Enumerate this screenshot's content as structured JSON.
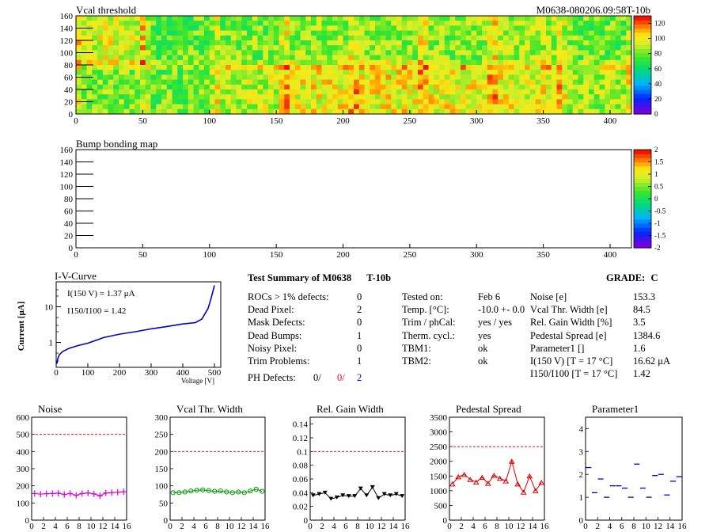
{
  "header": {
    "map1_title": "Vcal threshold",
    "module_id": "M0638-080206.09:58T-10b",
    "map2_title": "Bump bonding map"
  },
  "maps": {
    "x_ticks": [
      "0",
      "50",
      "100",
      "150",
      "200",
      "250",
      "300",
      "350",
      "400"
    ],
    "y_ticks": [
      "0",
      "20",
      "40",
      "60",
      "80",
      "100",
      "120",
      "140",
      "160"
    ],
    "palette1_ticks": [
      "0",
      "20",
      "40",
      "60",
      "80",
      "100",
      "120"
    ],
    "palette2_ticks": [
      "-2",
      "-1.5",
      "-1",
      "-0.5",
      "0",
      "0.5",
      "1",
      "1.5",
      "2"
    ]
  },
  "summary": {
    "title": "Test Summary of M0638",
    "variant": "T-10b",
    "grade_label": "GRADE:",
    "grade": "C",
    "left_rows": [
      {
        "label": "ROCs > 1% defects:",
        "value": "0"
      },
      {
        "label": "Dead Pixel:",
        "value": "2"
      },
      {
        "label": "Mask Defects:",
        "value": "0"
      },
      {
        "label": "Dead Bumps:",
        "value": "1"
      },
      {
        "label": "Noisy Pixel:",
        "value": "0"
      },
      {
        "label": "Trim Problems:",
        "value": "1"
      }
    ],
    "ph_label": "PH Defects:",
    "ph_values": [
      "0/",
      "0/",
      "2"
    ],
    "ph_colors": [
      "#000000",
      "#ff0000",
      "#0000ff"
    ],
    "mid_rows": [
      {
        "label": "Tested on:",
        "value": "Feb 6"
      },
      {
        "label": "Temp. [°C]:",
        "value": "-10.0 +- 0.0"
      },
      {
        "label": "Trim / phCal:",
        "value": "yes / yes"
      },
      {
        "label": "Therm. cycl.:",
        "value": "yes"
      },
      {
        "label": "TBM1:",
        "value": "ok"
      },
      {
        "label": "TBM2:",
        "value": "ok"
      }
    ],
    "right_rows": [
      {
        "label": "Noise [e]",
        "value": "153.3"
      },
      {
        "label": "Vcal Thr. Width [e]",
        "value": "84.5"
      },
      {
        "label": "Rel. Gain Width [%]",
        "value": "3.5"
      },
      {
        "label": "Pedestal Spread [e]",
        "value": "1384.6"
      },
      {
        "label": "Parameter1 []",
        "value": "1.6"
      },
      {
        "label": "I(150 V) [T = 17 °C]",
        "value": "16.62 μA"
      },
      {
        "label": "I150/I100 [T = 17 °C]",
        "value": "1.42"
      }
    ]
  },
  "chart_data": [
    {
      "type": "heatmap",
      "title": "Vcal threshold",
      "x_range": [
        0,
        416
      ],
      "y_range": [
        0,
        160
      ],
      "z_range": [
        0,
        130
      ],
      "colorbar_ticks": [
        0,
        20,
        40,
        60,
        80,
        100,
        120
      ],
      "layout": "2 rows x 8 ROCs",
      "roc_mean_top": [
        96,
        78,
        82,
        86,
        86,
        84,
        90,
        80
      ],
      "roc_mean_bottom": [
        84,
        80,
        92,
        100,
        101,
        100,
        99,
        88
      ]
    },
    {
      "type": "heatmap",
      "title": "Bump bonding map",
      "x_range": [
        0,
        416
      ],
      "y_range": [
        0,
        160
      ],
      "z_range": [
        -2,
        2
      ],
      "colorbar_ticks": [
        -2,
        -1.5,
        -1,
        -0.5,
        0,
        0.5,
        1,
        1.5,
        2
      ],
      "values": []
    },
    {
      "type": "line",
      "title": "I-V-Curve",
      "xlabel": "Voltage [V]",
      "ylabel": "Current [μA]",
      "x_ticks": [
        0,
        100,
        200,
        300,
        400,
        500
      ],
      "y_scale": "log",
      "y_ticks": [
        1,
        10
      ],
      "annotations": [
        "I(150 V) = 1.37 μA",
        "I150/I100 = 1.42"
      ],
      "x": [
        2,
        5,
        10,
        20,
        40,
        70,
        100,
        150,
        200,
        250,
        300,
        350,
        400,
        440,
        460,
        480,
        490,
        500
      ],
      "y": [
        0.25,
        0.35,
        0.45,
        0.55,
        0.68,
        0.82,
        0.95,
        1.37,
        1.7,
        2.0,
        2.4,
        2.8,
        3.3,
        3.6,
        4.5,
        9.0,
        18,
        40
      ]
    },
    {
      "type": "scatter",
      "title": "Noise",
      "x_ticks": [
        0,
        2,
        4,
        6,
        8,
        10,
        12,
        14,
        16
      ],
      "y_ticks": [
        0,
        100,
        200,
        300,
        400,
        500,
        600
      ],
      "ylim": [
        0,
        600
      ],
      "threshold": 500,
      "color": "#dd00dd",
      "marker": "plus",
      "connected": true,
      "x": [
        0,
        1,
        2,
        3,
        4,
        5,
        6,
        7,
        8,
        9,
        10,
        11,
        12,
        13,
        14,
        15
      ],
      "values": [
        155,
        152,
        154,
        155,
        157,
        150,
        155,
        145,
        155,
        158,
        153,
        142,
        158,
        160,
        162,
        165
      ]
    },
    {
      "type": "scatter",
      "title": "Vcal Thr. Width",
      "x_ticks": [
        0,
        2,
        4,
        6,
        8,
        10,
        12,
        14,
        16
      ],
      "y_ticks": [
        0,
        50,
        100,
        150,
        200,
        250,
        300
      ],
      "ylim": [
        0,
        300
      ],
      "threshold": 200,
      "color": "#009900",
      "marker": "circle",
      "connected": true,
      "x": [
        0,
        1,
        2,
        3,
        4,
        5,
        6,
        7,
        8,
        9,
        10,
        11,
        12,
        13,
        14,
        15
      ],
      "values": [
        80,
        80,
        82,
        85,
        87,
        88,
        86,
        84,
        85,
        82,
        80,
        82,
        80,
        85,
        90,
        84
      ]
    },
    {
      "type": "scatter",
      "title": "Rel. Gain Width",
      "x_ticks": [
        0,
        2,
        4,
        6,
        8,
        10,
        12,
        14,
        16
      ],
      "y_ticks": [
        0,
        0.02,
        0.04,
        0.06,
        0.08,
        0.1,
        0.12,
        0.14
      ],
      "ylim": [
        0,
        0.15
      ],
      "threshold": 0.1,
      "color": "#000000",
      "marker": "triangle-down",
      "connected": true,
      "x": [
        0,
        1,
        2,
        3,
        4,
        5,
        6,
        7,
        8,
        9,
        10,
        11,
        12,
        13,
        14,
        15
      ],
      "values": [
        0.036,
        0.038,
        0.04,
        0.031,
        0.033,
        0.036,
        0.035,
        0.035,
        0.046,
        0.036,
        0.048,
        0.032,
        0.038,
        0.036,
        0.038,
        0.035
      ]
    },
    {
      "type": "scatter",
      "title": "Pedestal Spread",
      "x_ticks": [
        0,
        2,
        4,
        6,
        8,
        10,
        12,
        14,
        16
      ],
      "y_ticks": [
        0,
        500,
        1000,
        1500,
        2000,
        2500,
        3000,
        3500
      ],
      "ylim": [
        0,
        3500
      ],
      "threshold": 2500,
      "color": "#dd0000",
      "marker": "triangle-up",
      "connected": true,
      "x": [
        0,
        1,
        2,
        3,
        4,
        5,
        6,
        7,
        8,
        9,
        10,
        11,
        12,
        13,
        14,
        15
      ],
      "values": [
        1230,
        1470,
        1550,
        1380,
        1290,
        1450,
        1250,
        1520,
        1420,
        1330,
        2000,
        1230,
        950,
        1500,
        1000,
        1280
      ]
    },
    {
      "type": "scatter",
      "title": "Parameter1",
      "x_ticks": [
        0,
        2,
        4,
        6,
        8,
        10,
        12,
        14,
        16
      ],
      "y_ticks": [
        0,
        1,
        2,
        3,
        4
      ],
      "ylim": [
        0,
        4.5
      ],
      "color": "#0000cc",
      "marker": "dash",
      "connected": false,
      "x": [
        0,
        1,
        2,
        3,
        4,
        5,
        6,
        7,
        8,
        9,
        10,
        11,
        12,
        13,
        14,
        15
      ],
      "values": [
        2.3,
        1.2,
        1.8,
        1.0,
        1.5,
        1.5,
        1.4,
        1.0,
        2.45,
        1.4,
        1.0,
        1.95,
        2.0,
        1.1,
        1.7,
        1.9
      ]
    }
  ]
}
